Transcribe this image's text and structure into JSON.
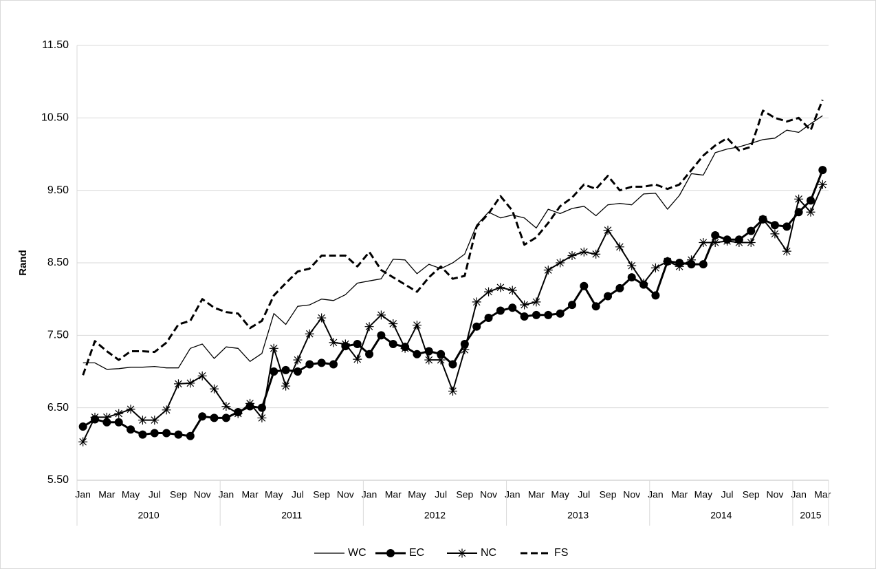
{
  "chart_data": {
    "type": "line",
    "y_label": "Rand",
    "categories": [
      "Jan",
      null,
      "Mar",
      null,
      "May",
      null,
      "Jul",
      null,
      "Sep",
      null,
      "Nov",
      null,
      "Jan",
      null,
      "Mar",
      null,
      "May",
      null,
      "Jul",
      null,
      "Sep",
      null,
      "Nov",
      null,
      "Jan",
      null,
      "Mar",
      null,
      "May",
      null,
      "Jul",
      null,
      "Sep",
      null,
      "Nov",
      null,
      "Jan",
      null,
      "Mar",
      null,
      "May",
      null,
      "Jul",
      null,
      "Sep",
      null,
      "Nov",
      null,
      "Jan",
      null,
      "Mar",
      null,
      "May",
      null,
      "Jul",
      null,
      "Sep",
      null,
      "Nov",
      null,
      "Jan",
      null,
      "Mar"
    ],
    "x_groups": [
      "2010",
      "2011",
      "2012",
      "2013",
      "2014",
      "2015"
    ],
    "ylim": [
      5.5,
      11.5
    ],
    "yticks": [
      {
        "value": 5.5,
        "label": "5.50"
      },
      {
        "value": 6.5,
        "label": "6.50"
      },
      {
        "value": 7.5,
        "label": "7.50"
      },
      {
        "value": 8.5,
        "label": "8.50"
      },
      {
        "value": 9.5,
        "label": "9.50"
      },
      {
        "value": 10.5,
        "label": "10.50"
      },
      {
        "value": 11.5,
        "label": "11.50"
      }
    ],
    "grid": true,
    "legend": "bottom",
    "series": [
      {
        "name": "WC",
        "color": "#000000",
        "marker": "none",
        "dash": "solid",
        "width": 1.3,
        "values": [
          7.12,
          7.12,
          7.03,
          7.04,
          7.06,
          7.06,
          7.07,
          7.05,
          7.05,
          7.32,
          7.38,
          7.18,
          7.34,
          7.32,
          7.14,
          7.25,
          7.8,
          7.65,
          7.9,
          7.92,
          8.0,
          7.98,
          8.06,
          8.22,
          8.25,
          8.28,
          8.55,
          8.54,
          8.35,
          8.48,
          8.42,
          8.5,
          8.62,
          9.02,
          9.2,
          9.12,
          9.16,
          9.12,
          8.98,
          9.24,
          9.18,
          9.25,
          9.28,
          9.15,
          9.3,
          9.32,
          9.3,
          9.45,
          9.46,
          9.24,
          9.43,
          9.73,
          9.71,
          10.02,
          10.07,
          10.1,
          10.15,
          10.2,
          10.22,
          10.33,
          10.3,
          10.42,
          10.53
        ]
      },
      {
        "name": "EC",
        "color": "#000000",
        "marker": "circle",
        "dash": "solid",
        "width": 3,
        "values": [
          6.24,
          6.34,
          6.3,
          6.3,
          6.2,
          6.13,
          6.15,
          6.15,
          6.13,
          6.11,
          6.38,
          6.36,
          6.36,
          6.44,
          6.52,
          6.5,
          7.0,
          7.02,
          7.0,
          7.1,
          7.12,
          7.1,
          7.35,
          7.38,
          7.24,
          7.5,
          7.38,
          7.34,
          7.24,
          7.28,
          7.24,
          7.1,
          7.38,
          7.62,
          7.74,
          7.84,
          7.88,
          7.76,
          7.78,
          7.78,
          7.8,
          7.92,
          8.18,
          7.9,
          8.04,
          8.15,
          8.3,
          8.2,
          8.05,
          8.52,
          8.5,
          8.48,
          8.48,
          8.88,
          8.82,
          8.82,
          8.94,
          9.1,
          9.02,
          9.0,
          9.2,
          9.36,
          9.78
        ]
      },
      {
        "name": "NC",
        "color": "#000000",
        "marker": "star",
        "dash": "solid",
        "width": 2,
        "values": [
          6.03,
          6.37,
          6.37,
          6.42,
          6.48,
          6.33,
          6.33,
          6.47,
          6.83,
          6.84,
          6.94,
          6.76,
          6.52,
          6.42,
          6.56,
          6.36,
          7.32,
          6.8,
          7.16,
          7.52,
          7.74,
          7.4,
          7.38,
          7.17,
          7.62,
          7.78,
          7.66,
          7.32,
          7.64,
          7.16,
          7.16,
          6.73,
          7.3,
          7.96,
          8.1,
          8.16,
          8.12,
          7.92,
          7.96,
          8.4,
          8.5,
          8.6,
          8.65,
          8.62,
          8.95,
          8.72,
          8.46,
          8.22,
          8.43,
          8.52,
          8.45,
          8.54,
          8.78,
          8.78,
          8.8,
          8.78,
          8.78,
          9.1,
          8.9,
          8.66,
          9.38,
          9.2,
          9.58
        ]
      },
      {
        "name": "FS",
        "color": "#000000",
        "marker": "none",
        "dash": "dashed",
        "width": 3,
        "values": [
          6.95,
          7.42,
          7.28,
          7.16,
          7.28,
          7.28,
          7.27,
          7.4,
          7.65,
          7.7,
          8.0,
          7.88,
          7.82,
          7.8,
          7.6,
          7.7,
          8.05,
          8.22,
          8.38,
          8.42,
          8.6,
          8.6,
          8.6,
          8.45,
          8.65,
          8.4,
          8.3,
          8.2,
          8.1,
          8.3,
          8.45,
          8.28,
          8.32,
          9.0,
          9.18,
          9.42,
          9.22,
          8.75,
          8.85,
          9.05,
          9.28,
          9.4,
          9.58,
          9.52,
          9.7,
          9.5,
          9.55,
          9.55,
          9.58,
          9.52,
          9.58,
          9.78,
          9.98,
          10.12,
          10.22,
          10.05,
          10.1,
          10.6,
          10.5,
          10.45,
          10.5,
          10.33,
          10.75
        ]
      }
    ]
  }
}
